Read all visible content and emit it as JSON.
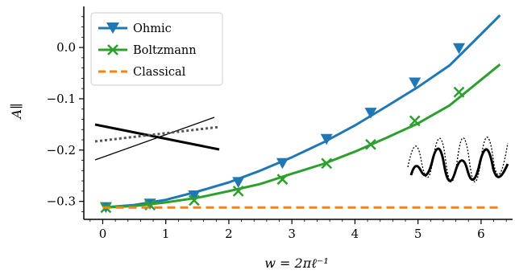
{
  "chart_data": {
    "type": "line",
    "xlabel": "w = 2πℓ⁻¹",
    "ylabel": "A∥",
    "xlim": [
      -0.3,
      6.5
    ],
    "ylim": [
      -0.335,
      0.08
    ],
    "xticks": [
      0,
      1,
      2,
      3,
      4,
      5,
      6
    ],
    "xtick_labels": [
      "0",
      "1",
      "2",
      "3",
      "4",
      "5",
      "6"
    ],
    "yticks": [
      -0.3,
      -0.2,
      -0.1,
      0.0
    ],
    "ytick_labels": [
      "−0.3",
      "−0.2",
      "−0.1",
      "0.0"
    ],
    "legend_position": "top-left",
    "grid": false,
    "series": [
      {
        "name": "Ohmic",
        "color": "#1f77b4",
        "marker": "triangle-down",
        "x": [
          0.0,
          0.5,
          1.0,
          1.5,
          2.0,
          2.5,
          3.0,
          3.5,
          4.0,
          4.5,
          5.0,
          5.5,
          6.0,
          6.3
        ],
        "y": [
          -0.312,
          -0.307,
          -0.297,
          -0.281,
          -0.263,
          -0.24,
          -0.214,
          -0.185,
          -0.152,
          -0.115,
          -0.077,
          -0.035,
          0.026,
          0.063
        ],
        "markers_x": [
          0.05,
          0.75,
          1.45,
          2.15,
          2.85,
          3.55,
          4.25,
          4.95,
          5.65
        ],
        "markers_y": [
          -0.311,
          -0.304,
          -0.288,
          -0.262,
          -0.225,
          -0.178,
          -0.127,
          -0.068,
          -0.001
        ]
      },
      {
        "name": "Boltzmann",
        "color": "#2ca02c",
        "marker": "x",
        "x": [
          0.0,
          0.5,
          1.0,
          1.5,
          2.0,
          2.5,
          3.0,
          3.5,
          4.0,
          4.5,
          5.0,
          5.5,
          6.0,
          6.3
        ],
        "y": [
          -0.312,
          -0.309,
          -0.302,
          -0.293,
          -0.28,
          -0.266,
          -0.246,
          -0.227,
          -0.203,
          -0.176,
          -0.148,
          -0.113,
          -0.063,
          -0.033
        ],
        "markers_x": [
          0.05,
          0.75,
          1.45,
          2.15,
          2.85,
          3.55,
          4.25,
          4.95,
          5.65
        ],
        "markers_y": [
          -0.312,
          -0.307,
          -0.298,
          -0.28,
          -0.257,
          -0.226,
          -0.189,
          -0.143,
          -0.087
        ]
      },
      {
        "name": "Classical",
        "color": "#ff7f0e",
        "marker": "none",
        "dashed": true,
        "x": [
          0.0,
          6.3
        ],
        "y": [
          -0.312,
          -0.312
        ]
      }
    ]
  }
}
